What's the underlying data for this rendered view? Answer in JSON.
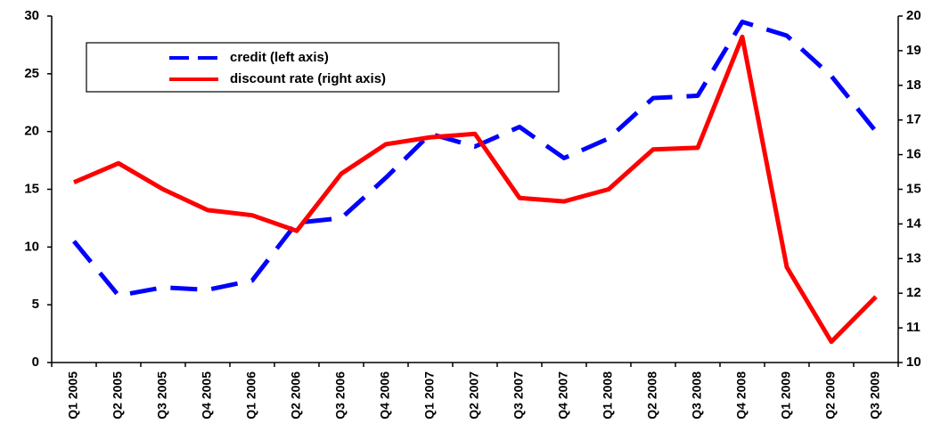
{
  "chart_data": {
    "type": "line",
    "categories": [
      "Q1 2005",
      "Q2 2005",
      "Q3 2005",
      "Q4 2005",
      "Q1 2006",
      "Q2 2006",
      "Q3 2006",
      "Q4 2006",
      "Q1 2007",
      "Q2 2007",
      "Q3 2007",
      "Q4 2007",
      "Q1 2008",
      "Q2 2008",
      "Q3 2008",
      "Q4 2008",
      "Q1 2009",
      "Q2 2009",
      "Q3 2009"
    ],
    "series": [
      {
        "name": "credit (left axis)",
        "color": "#0000ff",
        "dashed": true,
        "values": [
          10.5,
          5.8,
          6.5,
          6.3,
          7.1,
          12.1,
          12.5,
          16,
          19.8,
          18.7,
          20.4,
          17.7,
          19.4,
          22.9,
          23.1,
          29.5,
          28.3,
          24.8,
          20
        ]
      },
      {
        "name": "discount rate (right axis)",
        "color": "#ff0000",
        "axis": "y2",
        "values": [
          15.2,
          15.75,
          15.0,
          14.4,
          14.25,
          13.8,
          15.45,
          16.3,
          16.5,
          16.6,
          14.75,
          14.65,
          15.0,
          16.15,
          16.2,
          19.4,
          12.75,
          10.6,
          11.9
        ]
      }
    ],
    "ylim": [
      0,
      30
    ],
    "yticks": [
      0,
      5,
      10,
      15,
      20,
      25,
      30
    ],
    "y2lim": [
      10,
      20
    ],
    "y2ticks": [
      10,
      11,
      12,
      13,
      14,
      15,
      16,
      17,
      18,
      19,
      20
    ]
  }
}
